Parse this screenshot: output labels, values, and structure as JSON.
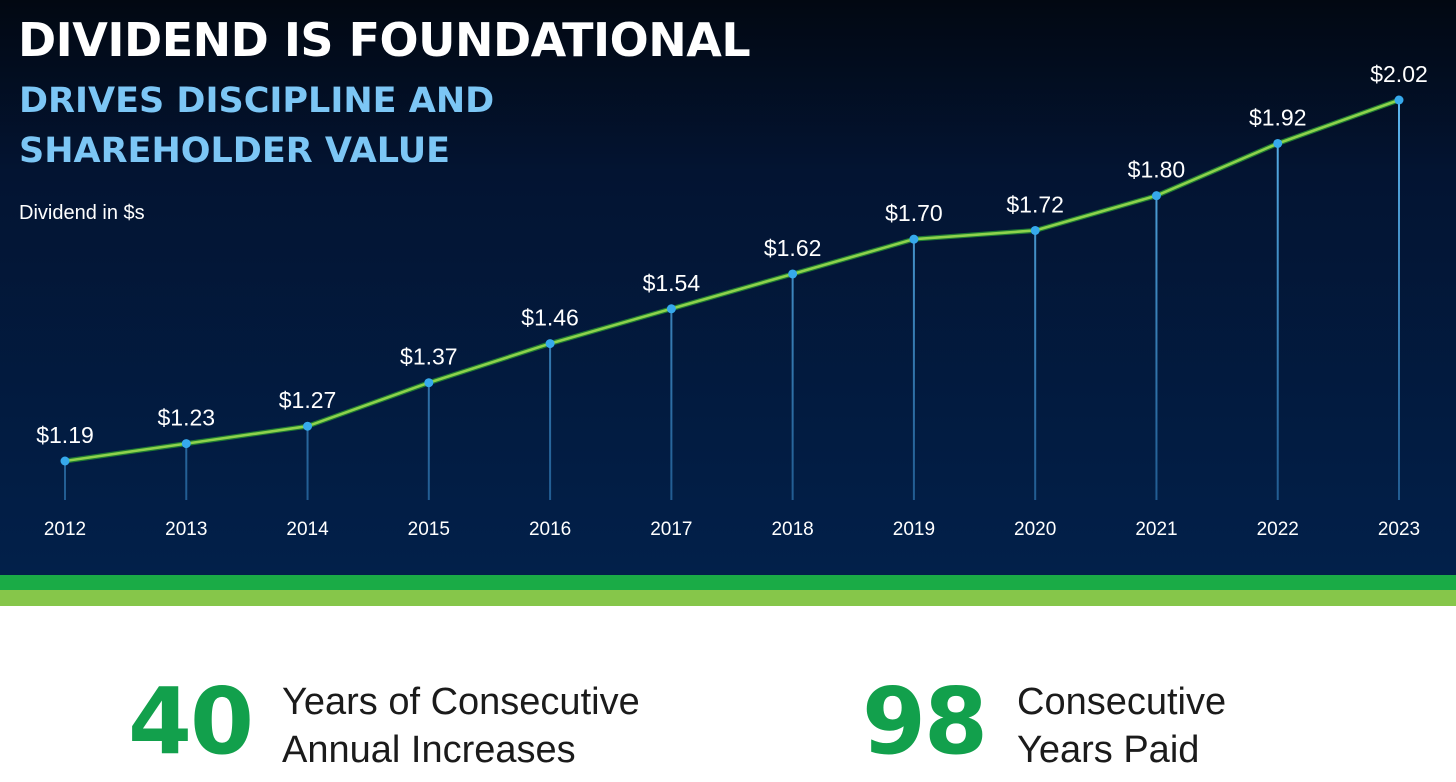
{
  "title": "DIVIDEND IS FOUNDATIONAL",
  "subtitle_line1": "DRIVES DISCIPLINE AND",
  "subtitle_line2": "SHAREHOLDER VALUE",
  "units_label": "Dividend in $s",
  "chart_data": {
    "type": "line",
    "title": "DIVIDEND IS FOUNDATIONAL",
    "subtitle": "DRIVES DISCIPLINE AND SHAREHOLDER VALUE",
    "ylabel": "Dividend in $s",
    "xlabel": "",
    "categories": [
      "2012",
      "2013",
      "2014",
      "2015",
      "2016",
      "2017",
      "2018",
      "2019",
      "2020",
      "2021",
      "2022",
      "2023"
    ],
    "values": [
      1.19,
      1.23,
      1.27,
      1.37,
      1.46,
      1.54,
      1.62,
      1.7,
      1.72,
      1.8,
      1.92,
      2.02
    ],
    "data_labels": [
      "$1.19",
      "$1.23",
      "$1.27",
      "$1.37",
      "$1.46",
      "$1.54",
      "$1.62",
      "$1.70",
      "$1.72",
      "$1.80",
      "$1.92",
      "$2.02"
    ],
    "ylim": [
      1.0,
      2.1
    ],
    "grid": false,
    "colors": {
      "line": "#8ed24c",
      "line_edge": "#1f7a32",
      "marker": "#36a9ec",
      "drop_line": "#4aa8e6",
      "label": "#ffffff",
      "tick": "#ffffff"
    }
  },
  "stats": [
    {
      "number": "40",
      "line1": "Years of Consecutive",
      "line2": "Annual Increases"
    },
    {
      "number": "98",
      "line1": "Consecutive",
      "line2": "Years Paid"
    }
  ],
  "colors": {
    "title": "#ffffff",
    "subtitle": "#7cc6f5",
    "band_dark": "#1aab46",
    "band_light": "#86c64a",
    "stat_number": "#12a04c"
  }
}
